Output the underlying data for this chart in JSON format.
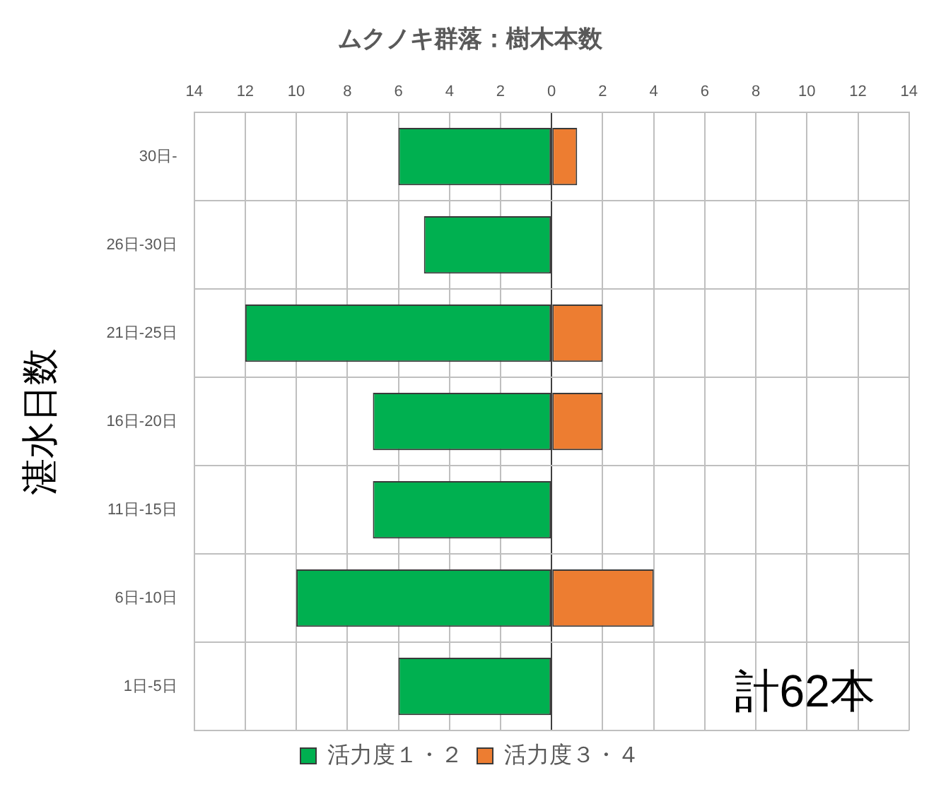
{
  "chart_data": {
    "type": "bar",
    "orientation": "horizontal",
    "stacked": true,
    "title": "ムクノキ群落：樹木本数",
    "ylabel": "湛水日数",
    "categories": [
      "30日-",
      "26日-30日",
      "21日-25日",
      "16日-20日",
      "11日-15日",
      "6日-10日",
      "1日-5日"
    ],
    "series": [
      {
        "name": "活力度１・２",
        "color": "#00b050",
        "values": [
          -6,
          -5,
          -12,
          -7,
          -7,
          -10,
          -6
        ]
      },
      {
        "name": "活力度３・４",
        "color": "#ed7d31",
        "values": [
          1,
          null,
          2,
          2,
          null,
          4,
          null
        ]
      }
    ],
    "xlim": [
      -14,
      14
    ],
    "xticks": [
      {
        "value": -14,
        "label": "14"
      },
      {
        "value": -12,
        "label": "12"
      },
      {
        "value": -10,
        "label": "10"
      },
      {
        "value": -8,
        "label": "8"
      },
      {
        "value": -6,
        "label": "6"
      },
      {
        "value": -4,
        "label": "4"
      },
      {
        "value": -2,
        "label": "2"
      },
      0,
      2,
      4,
      6,
      8,
      10,
      12,
      14
    ],
    "grid": true,
    "legend": "bottom",
    "annotations": [
      "計62本"
    ]
  }
}
